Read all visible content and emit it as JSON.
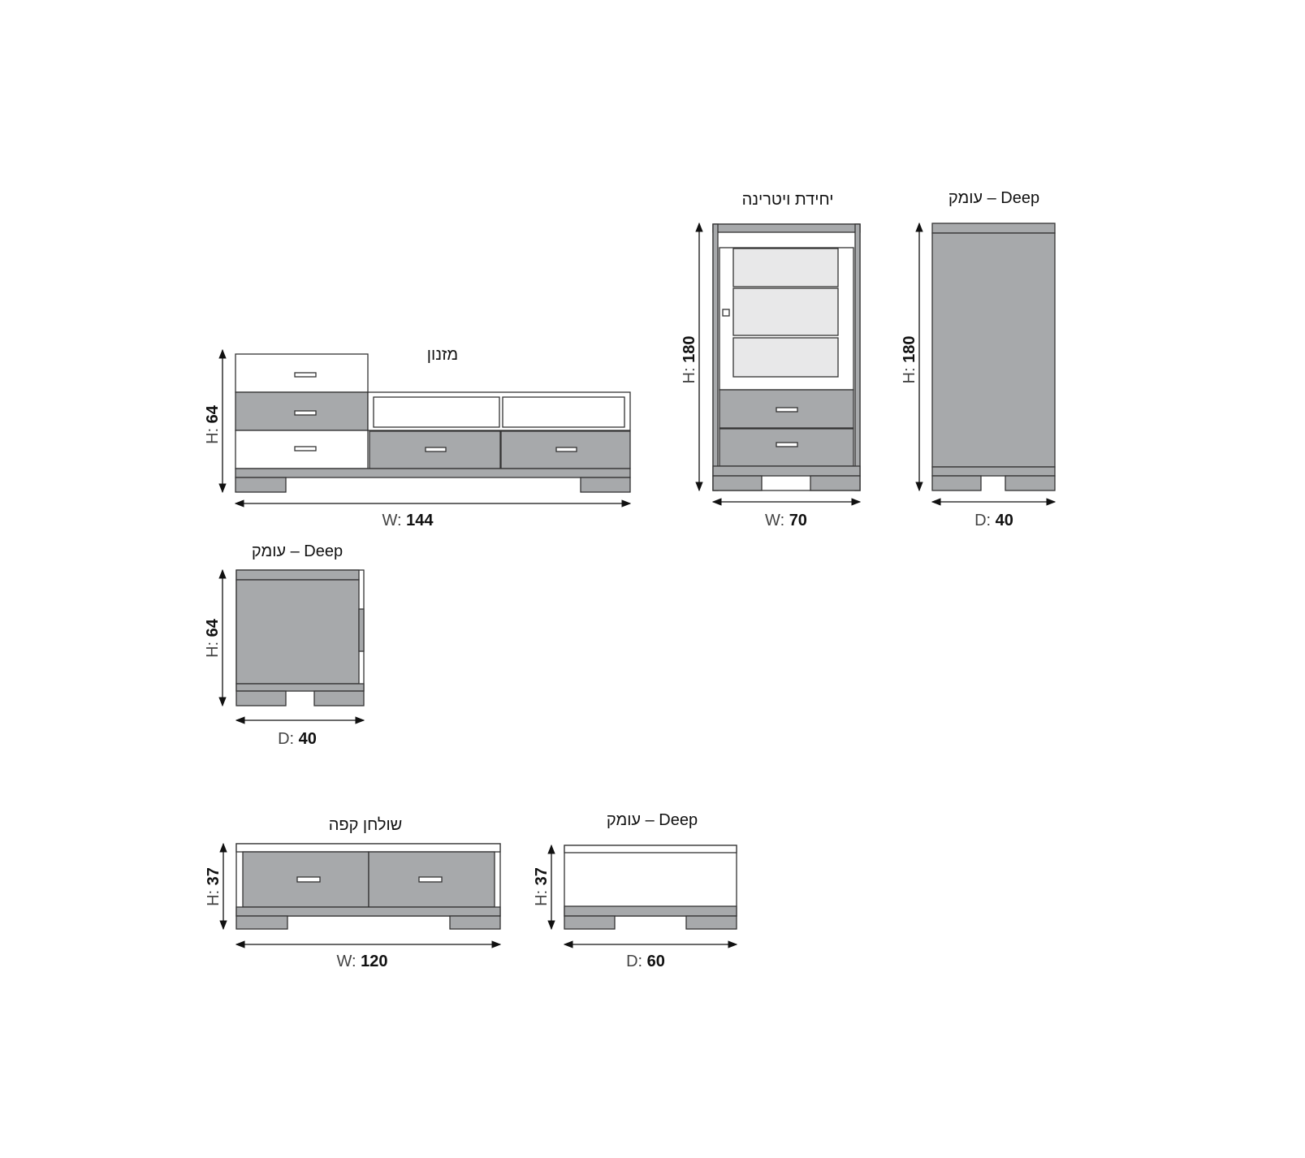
{
  "units": {
    "mizanon": {
      "title": "מזנון",
      "height": {
        "prefix": "H: ",
        "value": "64"
      },
      "width": {
        "prefix": "W: ",
        "value": "144"
      }
    },
    "mizanon_side": {
      "title": "עומק – Deep",
      "height": {
        "prefix": "H: ",
        "value": "64"
      },
      "depth": {
        "prefix": "D: ",
        "value": "40"
      }
    },
    "vitrina": {
      "title": "יחידת ויטרינה",
      "height": {
        "prefix": "H: ",
        "value": "180"
      },
      "width": {
        "prefix": "W: ",
        "value": "70"
      }
    },
    "vitrina_side": {
      "title": "עומק – Deep",
      "height": {
        "prefix": "H: ",
        "value": "180"
      },
      "depth": {
        "prefix": "D: ",
        "value": "40"
      }
    },
    "coffee_table": {
      "title": "שולחן קפה",
      "height": {
        "prefix": "H: ",
        "value": "37"
      },
      "width": {
        "prefix": "W: ",
        "value": "120"
      }
    },
    "coffee_table_side": {
      "title": "עומק – Deep",
      "height": {
        "prefix": "H: ",
        "value": "37"
      },
      "depth": {
        "prefix": "D: ",
        "value": "60"
      }
    }
  },
  "colors": {
    "panel": "#a7a9ab",
    "glass": "#e8e8e9",
    "outline": "#333333"
  }
}
